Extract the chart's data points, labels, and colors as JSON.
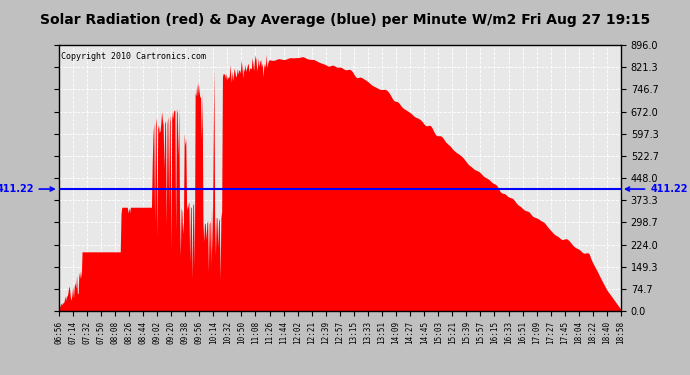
{
  "title": "Solar Radiation (red) & Day Average (blue) per Minute W/m2 Fri Aug 27 19:15",
  "copyright": "Copyright 2010 Cartronics.com",
  "ymin": 0.0,
  "ymax": 896.0,
  "yticks": [
    0.0,
    74.7,
    149.3,
    224.0,
    298.7,
    373.3,
    448.0,
    522.7,
    597.3,
    672.0,
    746.7,
    821.3,
    896.0
  ],
  "day_average": 411.22,
  "fill_color": "#FF0000",
  "line_color": "#0000FF",
  "plot_bg_color": "#E8E8E8",
  "grid_color": "#FFFFFF",
  "x_tick_labels": [
    "06:56",
    "07:14",
    "07:32",
    "07:50",
    "08:08",
    "08:26",
    "08:44",
    "09:02",
    "09:20",
    "09:38",
    "09:56",
    "10:14",
    "10:32",
    "10:50",
    "11:08",
    "11:26",
    "11:44",
    "12:02",
    "12:21",
    "12:39",
    "12:57",
    "13:15",
    "13:33",
    "13:51",
    "14:09",
    "14:27",
    "14:45",
    "15:03",
    "15:21",
    "15:39",
    "15:57",
    "16:15",
    "16:33",
    "16:51",
    "17:09",
    "17:27",
    "17:45",
    "18:04",
    "18:22",
    "18:40",
    "18:58"
  ],
  "n_points": 733,
  "avg_label_fontsize": 7,
  "title_fontsize": 10,
  "copyright_fontsize": 6,
  "ytick_fontsize": 7,
  "xtick_fontsize": 5.5
}
